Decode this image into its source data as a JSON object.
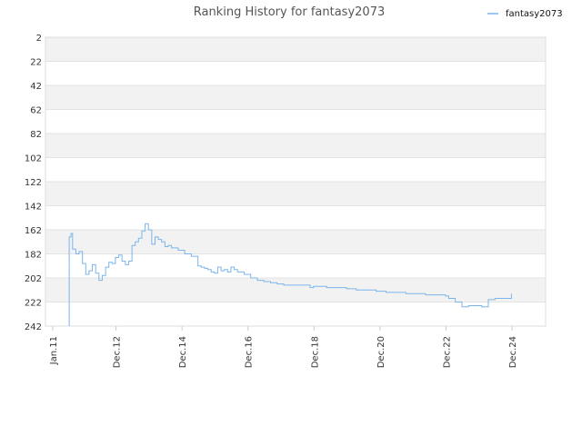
{
  "chart_data": {
    "type": "line",
    "title": "Ranking History for fantasy2073",
    "xlabel": "",
    "ylabel": "",
    "grid": true,
    "legend_position": "top-right",
    "y_axis_inverted": true,
    "ylim": [
      2,
      242
    ],
    "y_ticks": [
      2,
      22,
      42,
      62,
      82,
      102,
      122,
      142,
      162,
      182,
      202,
      222,
      242
    ],
    "y_tick_labels": [
      "2",
      "22",
      "42",
      "62",
      "82",
      "102",
      "122",
      "142",
      "162",
      "182",
      "202",
      "222",
      "242"
    ],
    "xlim": [
      2011.0,
      2025.0
    ],
    "x_ticks": [
      2011.0,
      2012.9167,
      2014.9167,
      2016.9167,
      2018.9167,
      2020.9167,
      2022.9167,
      2024.9167
    ],
    "x_tick_labels": [
      "Jan.11",
      "Dec.12",
      "Dec.14",
      "Dec.16",
      "Dec.18",
      "Dec.20",
      "Dec.22",
      "Dec.24"
    ],
    "line_color": "#7cb5ec",
    "series": [
      {
        "name": "fantasy2073",
        "x": [
          2011.5,
          2011.5,
          2011.55,
          2011.6,
          2011.7,
          2011.8,
          2011.9,
          2012.0,
          2012.1,
          2012.2,
          2012.3,
          2012.4,
          2012.5,
          2012.6,
          2012.7,
          2012.8,
          2012.9,
          2013.0,
          2013.1,
          2013.2,
          2013.3,
          2013.4,
          2013.5,
          2013.6,
          2013.7,
          2013.8,
          2013.9,
          2014.0,
          2014.1,
          2014.2,
          2014.3,
          2014.4,
          2014.5,
          2014.6,
          2014.8,
          2015.0,
          2015.2,
          2015.4,
          2015.5,
          2015.6,
          2015.7,
          2015.8,
          2015.9,
          2016.0,
          2016.1,
          2016.2,
          2016.3,
          2016.4,
          2016.5,
          2016.6,
          2016.8,
          2017.0,
          2017.2,
          2017.4,
          2017.6,
          2017.8,
          2018.0,
          2018.2,
          2018.4,
          2018.6,
          2018.8,
          2018.9,
          2019.0,
          2019.3,
          2019.6,
          2019.9,
          2020.2,
          2020.5,
          2020.8,
          2021.1,
          2021.4,
          2021.7,
          2022.0,
          2022.3,
          2022.6,
          2022.9,
          2023.0,
          2023.2,
          2023.4,
          2023.6,
          2023.8,
          2024.0,
          2024.2,
          2024.4,
          2024.9,
          2024.9
        ],
        "values": [
          242,
          168,
          165,
          178,
          182,
          180,
          190,
          199,
          196,
          191,
          198,
          204,
          200,
          193,
          189,
          190,
          185,
          183,
          188,
          191,
          188,
          175,
          172,
          169,
          163,
          157,
          162,
          174,
          168,
          170,
          172,
          176,
          175,
          177,
          179,
          182,
          184,
          192,
          193,
          194,
          195,
          197,
          198,
          193,
          196,
          195,
          197,
          193,
          195,
          197,
          199,
          202,
          204,
          205,
          206,
          207,
          208,
          208,
          208,
          208,
          210,
          209,
          209,
          210,
          210,
          211,
          212,
          212,
          213,
          214,
          214,
          215,
          215,
          216,
          216,
          217,
          219,
          222,
          226,
          225,
          225,
          226,
          220,
          219,
          219,
          215
        ]
      }
    ]
  }
}
